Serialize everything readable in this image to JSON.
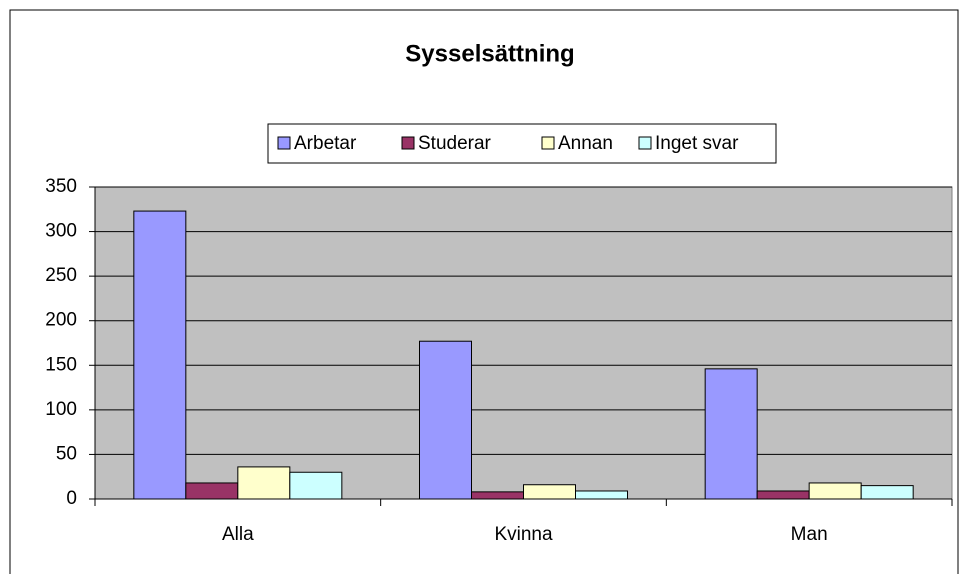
{
  "chart_data": {
    "type": "bar",
    "title": "Sysselsättning",
    "categories": [
      "Alla",
      "Kvinna",
      "Man"
    ],
    "series": [
      {
        "name": "Arbetar",
        "color": "#9999ff",
        "values": [
          323,
          177,
          146
        ]
      },
      {
        "name": "Studerar",
        "color": "#993366",
        "values": [
          18,
          8,
          9
        ]
      },
      {
        "name": "Annan",
        "color": "#ffffcc",
        "values": [
          36,
          16,
          18
        ]
      },
      {
        "name": "Inget svar",
        "color": "#ccffff",
        "values": [
          30,
          9,
          15
        ]
      }
    ],
    "ylim": [
      0,
      350
    ],
    "yticks": [
      0,
      50,
      100,
      150,
      200,
      250,
      300,
      350
    ],
    "grid": true,
    "plot_background": "#c0c0c0",
    "legend": "top"
  }
}
